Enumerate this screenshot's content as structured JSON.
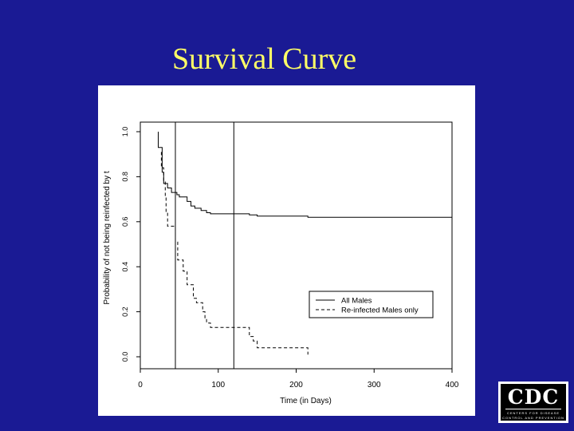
{
  "slide": {
    "title": "Survival Curve"
  },
  "colors": {
    "background": "#1a1a94",
    "title": "#ffff66",
    "panel": "#ffffff",
    "ink": "#000000"
  },
  "logo": {
    "text": "CDC",
    "subtitle_line1": "CENTERS FOR DISEASE",
    "subtitle_line2": "CONTROL AND PREVENTION"
  },
  "chart_data": {
    "type": "line",
    "step": true,
    "xlabel": "Time (in Days)",
    "ylabel": "Probability of not being reinfected by t",
    "xlim": [
      0,
      400
    ],
    "ylim": [
      0,
      1.0
    ],
    "x_ticks": [
      0,
      100,
      200,
      300,
      400
    ],
    "y_ticks": [
      "0.0",
      "0.2",
      "0.4",
      "0.6",
      "0.8",
      "1.0"
    ],
    "vertical_lines": [
      45,
      120
    ],
    "legend_position": "bottom-right",
    "series": [
      {
        "name": "All Males",
        "style": "solid",
        "points": [
          [
            23,
            1.0
          ],
          [
            23,
            0.93
          ],
          [
            28,
            0.93
          ],
          [
            28,
            0.82
          ],
          [
            30,
            0.82
          ],
          [
            30,
            0.77
          ],
          [
            35,
            0.77
          ],
          [
            35,
            0.75
          ],
          [
            40,
            0.75
          ],
          [
            40,
            0.73
          ],
          [
            47,
            0.73
          ],
          [
            47,
            0.72
          ],
          [
            50,
            0.72
          ],
          [
            50,
            0.71
          ],
          [
            60,
            0.71
          ],
          [
            60,
            0.69
          ],
          [
            65,
            0.69
          ],
          [
            65,
            0.67
          ],
          [
            70,
            0.67
          ],
          [
            70,
            0.66
          ],
          [
            78,
            0.66
          ],
          [
            78,
            0.65
          ],
          [
            85,
            0.65
          ],
          [
            85,
            0.64
          ],
          [
            90,
            0.64
          ],
          [
            90,
            0.635
          ],
          [
            140,
            0.635
          ],
          [
            140,
            0.63
          ],
          [
            150,
            0.63
          ],
          [
            150,
            0.625
          ],
          [
            215,
            0.625
          ],
          [
            215,
            0.62
          ],
          [
            400,
            0.62
          ]
        ]
      },
      {
        "name": "Re-infected Males only",
        "style": "dashed",
        "points": [
          [
            27,
            0.91
          ],
          [
            27,
            0.84
          ],
          [
            30,
            0.84
          ],
          [
            30,
            0.78
          ],
          [
            32,
            0.78
          ],
          [
            32,
            0.71
          ],
          [
            33,
            0.71
          ],
          [
            33,
            0.64
          ],
          [
            35,
            0.64
          ],
          [
            35,
            0.58
          ],
          [
            45,
            0.58
          ],
          [
            45,
            0.51
          ],
          [
            48,
            0.51
          ],
          [
            48,
            0.43
          ],
          [
            55,
            0.43
          ],
          [
            55,
            0.38
          ],
          [
            60,
            0.38
          ],
          [
            60,
            0.32
          ],
          [
            68,
            0.32
          ],
          [
            68,
            0.26
          ],
          [
            72,
            0.26
          ],
          [
            72,
            0.24
          ],
          [
            80,
            0.24
          ],
          [
            80,
            0.2
          ],
          [
            83,
            0.2
          ],
          [
            83,
            0.17
          ],
          [
            85,
            0.17
          ],
          [
            85,
            0.15
          ],
          [
            90,
            0.15
          ],
          [
            90,
            0.13
          ],
          [
            140,
            0.13
          ],
          [
            140,
            0.09
          ],
          [
            145,
            0.09
          ],
          [
            145,
            0.07
          ],
          [
            150,
            0.07
          ],
          [
            150,
            0.04
          ],
          [
            215,
            0.04
          ],
          [
            215,
            0.01
          ]
        ]
      }
    ]
  }
}
